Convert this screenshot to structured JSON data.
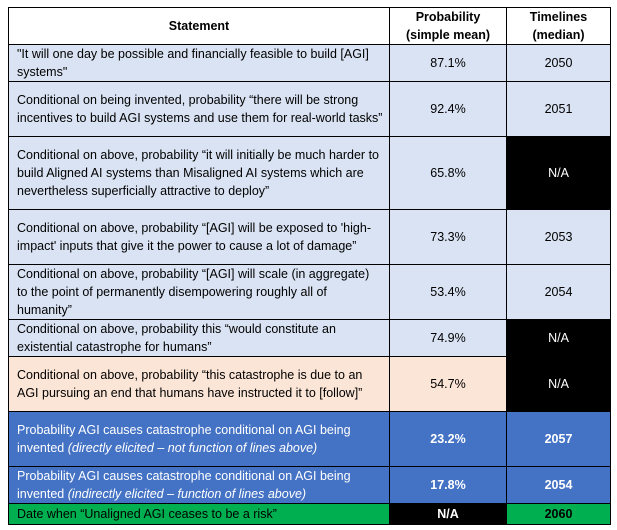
{
  "header": {
    "statement": "Statement",
    "probability": "Probability (simple mean)",
    "timelines": "Timelines (median)"
  },
  "rows": [
    {
      "statement": "\"It will one day be possible and financially feasible to build [AGI] systems\"",
      "probability": "87.1%",
      "timeline": "2050"
    },
    {
      "statement": "Conditional on being invented, probability “there will be strong incentives to build AGI systems and use them for real-world tasks”",
      "probability": "92.4%",
      "timeline": "2051"
    },
    {
      "statement": "Conditional on above, probability “it will initially be much harder to build Aligned AI systems than Misaligned AI systems which are nevertheless superficially attractive to deploy”",
      "probability": "65.8%",
      "timeline": "N/A"
    },
    {
      "statement": "Conditional on above, probability “[AGI] will be exposed to 'high-impact' inputs that give it the power to cause a lot of damage”",
      "probability": "73.3%",
      "timeline": "2053"
    },
    {
      "statement": "Conditional on above, probability “[AGI] will scale (in aggregate) to the point of permanently disempowering roughly all of humanity”",
      "probability": "53.4%",
      "timeline": "2054"
    },
    {
      "statement": "Conditional on above, probability this “would constitute an existential catastrophe for humans”",
      "probability": "74.9%",
      "timeline": "N/A"
    },
    {
      "statement": "Conditional on above, probability “this catastrophe is due to an AGI pursuing an end that humans have instructed it to [follow]”",
      "probability": "54.7%",
      "timeline": "N/A"
    },
    {
      "statement": "Probability AGI causes catastrophe conditional on AGI being invented",
      "statement_italic": "(directly elicited – not function of lines above)",
      "probability": "23.2%",
      "timeline": "2057"
    },
    {
      "statement": "Probability AGI causes catastrophe conditional on AGI being invented",
      "statement_italic": "(indirectly elicited – function of lines above)",
      "probability": "17.8%",
      "timeline": "2054"
    },
    {
      "statement": "Date when “Unaligned AGI ceases to be a risk”",
      "probability": "N/A",
      "timeline": "2060"
    }
  ]
}
